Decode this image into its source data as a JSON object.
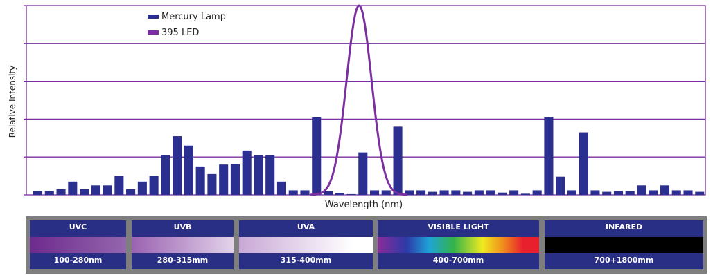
{
  "chart_data": {
    "type": "bar",
    "xlabel": "Wavelength (nm)",
    "ylabel": "Relative Intensity",
    "legend": [
      {
        "label": "Mercury Lamp",
        "color": "#2b2f8f"
      },
      {
        "label": "395 LED",
        "color": "#7b2fa0"
      }
    ],
    "legend_position": "top-left",
    "grid": "horizontal",
    "ylim": [
      0,
      5
    ],
    "series": [
      {
        "name": "Mercury Lamp",
        "values": [
          0.1,
          0.1,
          0.15,
          0.35,
          0.15,
          0.25,
          0.25,
          0.5,
          0.15,
          0.35,
          0.5,
          1.05,
          1.55,
          1.3,
          0.75,
          0.55,
          0.8,
          0.82,
          1.17,
          1.05,
          1.05,
          0.35,
          0.12,
          0.12,
          2.05,
          0.1,
          0.05,
          0.02,
          1.12,
          0.12,
          0.12,
          1.8,
          0.12,
          0.12,
          0.08,
          0.12,
          0.12,
          0.08,
          0.12,
          0.12,
          0.06,
          0.12,
          0.03,
          0.12,
          2.05,
          0.48,
          0.12,
          1.65,
          0.12,
          0.08,
          0.1,
          0.1,
          0.25,
          0.12,
          0.25,
          0.12,
          0.12,
          0.08
        ]
      },
      {
        "name": "395 LED",
        "peak": 5.0,
        "peak_position": 0.49
      }
    ]
  },
  "spectrum_bands": [
    {
      "name": "UVC",
      "range": "100-280nm",
      "gradient": "linear-gradient(to right, #6e2a8e, #9466ad)"
    },
    {
      "name": "UVB",
      "range": "280-315mm",
      "gradient": "linear-gradient(to right, #9a62b0, #e3d2ea)"
    },
    {
      "name": "UVA",
      "range": "315-400mm",
      "gradient": "linear-gradient(to right, #c9a8d6, #ffffff 85%)"
    },
    {
      "name": "VISIBLE LIGHT",
      "range": "400-700mm",
      "gradient": "linear-gradient(to right, #8a2c98, #2c3aa8 18%, #1fa3d8 32%, #33b34a 47%, #f0ea1f 65%, #f08a1e 78%, #e81f2d 90%, #e81f2d)"
    },
    {
      "name": "INFARED",
      "range": "700+1800mm",
      "gradient": "linear-gradient(to right, #000000, #000000)"
    }
  ]
}
